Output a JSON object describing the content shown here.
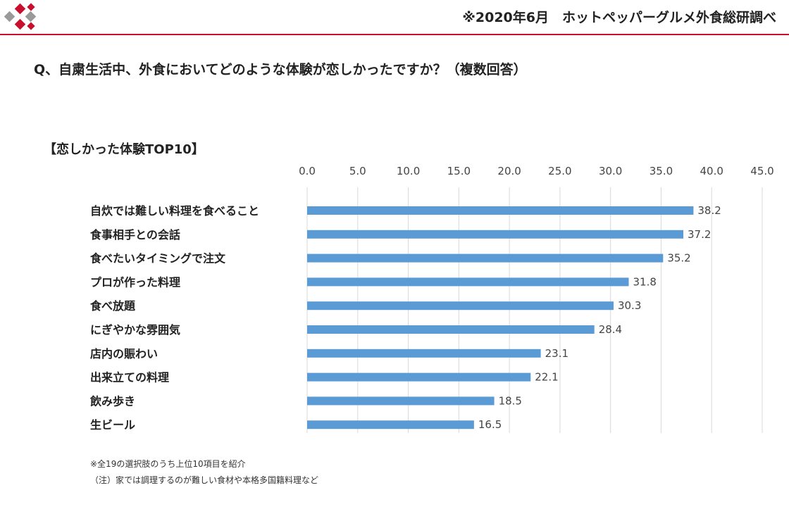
{
  "header": {
    "source": "※2020年6月　ホットペッパーグルメ外食総研調べ",
    "accent_color": "#c8102e"
  },
  "question": "Q、自粛生活中、外食においてどのような体験が恋しかったですか？（複数回答）",
  "subtitle": "【恋しかった体験TOP10】",
  "chart_data": {
    "type": "bar",
    "orientation": "horizontal",
    "title": "【恋しかった体験TOP10】",
    "categories": [
      "自炊では難しい料理を食べること",
      "食事相手との会話",
      "食べたいタイミングで注文",
      "プロが作った料理",
      "食べ放題",
      "にぎやかな雰囲気",
      "店内の賑わい",
      "出来立ての料理",
      "飲み歩き",
      "生ビール"
    ],
    "values": [
      38.2,
      37.2,
      35.2,
      31.8,
      30.3,
      28.4,
      23.1,
      22.1,
      18.5,
      16.5
    ],
    "value_labels": [
      "38.2",
      "37.2",
      "35.2",
      "31.8",
      "30.3",
      "28.4",
      "23.1",
      "22.1",
      "18.5",
      "16.5"
    ],
    "xlim": [
      0,
      45
    ],
    "ticks": [
      0,
      5,
      10,
      15,
      20,
      25,
      30,
      35,
      40,
      45
    ],
    "tick_labels": [
      "0.0",
      "5.0",
      "10.0",
      "15.0",
      "20.0",
      "25.0",
      "30.0",
      "35.0",
      "40.0",
      "45.0"
    ],
    "axis_position": "top",
    "grid": true,
    "bar_color": "#5b9bd5",
    "grid_color": "#d9d9d9"
  },
  "notes": [
    "※全19の選択肢のうち上位10項目を紹介",
    "（注）家では調理するのが難しい食材や本格多国籍料理など"
  ]
}
